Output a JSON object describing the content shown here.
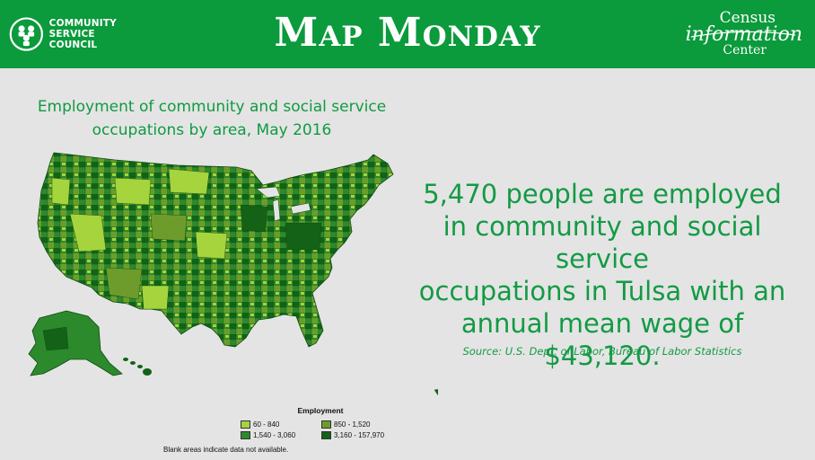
{
  "header": {
    "org_name": "COMMUNITY\nSERVICE\nCOUNCIL",
    "title": "Map Monday",
    "partner_line1": "Census",
    "partner_line2": "information",
    "partner_line3": "Center",
    "bg_color": "#0b9a3c"
  },
  "map": {
    "title": "Employment of community and social service occupations by area, May 2016",
    "legend": {
      "title": "Employment",
      "items": [
        {
          "label": "60 - 840",
          "color": "#a6d43c"
        },
        {
          "label": "850 - 1,520",
          "color": "#6e9c2c"
        },
        {
          "label": "1,540 - 3,060",
          "color": "#2c8a2c"
        },
        {
          "label": "3,160 - 157,970",
          "color": "#136217"
        }
      ]
    },
    "note": "Blank areas indicate data not available."
  },
  "fact": {
    "text": "5,470 people are employed\nin community and social service\noccupations in Tulsa with an\nannual mean wage of\n$43,120.",
    "source": "Source: U.S. Dept. of Labor, Bureau of Labor Statistics",
    "color": "#139a44"
  }
}
